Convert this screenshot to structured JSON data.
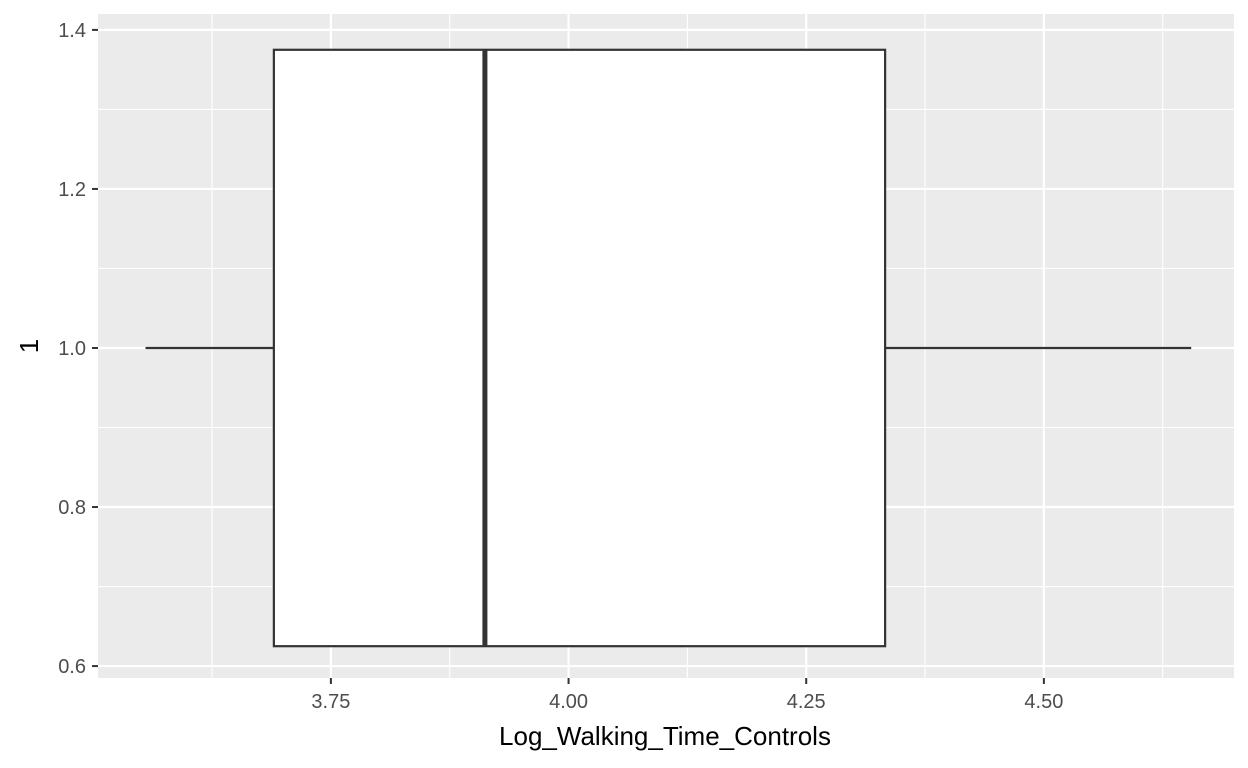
{
  "chart_data": {
    "type": "boxplot",
    "title": "",
    "xlabel": "Log_Walking_Time_Controls",
    "ylabel": "1",
    "orientation": "horizontal",
    "xlim": [
      3.505,
      4.7
    ],
    "ylim": [
      0.585,
      1.42
    ],
    "x_ticks": [
      3.75,
      4.0,
      4.25,
      4.5
    ],
    "x_tick_labels": [
      "3.75",
      "4.00",
      "4.25",
      "4.50"
    ],
    "y_ticks": [
      0.6,
      0.8,
      1.0,
      1.2,
      1.4
    ],
    "y_tick_labels": [
      "0.6",
      "0.8",
      "1.0",
      "1.2",
      "1.4"
    ],
    "box": {
      "y": 1.0,
      "ymin": 0.625,
      "ymax": 1.375,
      "whisker_low": 3.555,
      "q1": 3.69,
      "median": 3.912,
      "q3": 4.333,
      "whisker_high": 4.655
    },
    "grid": true,
    "colors": {
      "panel_background": "#ebebeb",
      "grid_major": "#ffffff",
      "box_fill": "#ffffff",
      "box_line": "#333333"
    }
  }
}
